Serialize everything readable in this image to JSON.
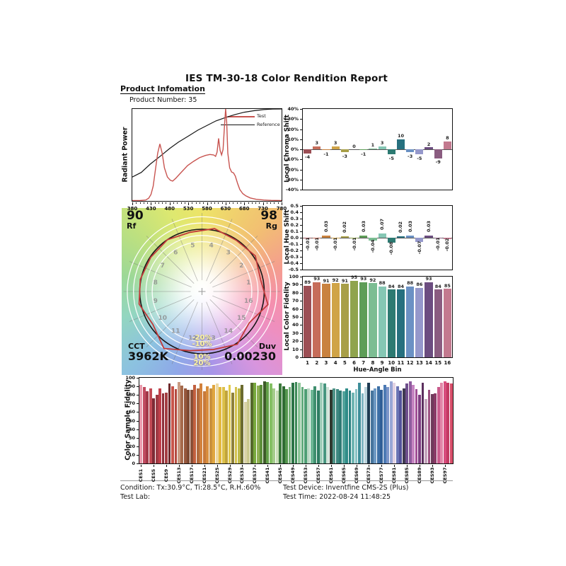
{
  "page": {
    "title": "IES TM-30-18 Color Rendition Report"
  },
  "product": {
    "section_title": "Product Infomation",
    "number_label": "Product Number: 35"
  },
  "bin_colors": [
    "#9C4F55",
    "#C66D5A",
    "#C9823F",
    "#D0A447",
    "#A89F48",
    "#8FA44D",
    "#5E9D58",
    "#7CBD93",
    "#85C7B4",
    "#2D7A72",
    "#26707F",
    "#6B91C4",
    "#9598CB",
    "#6C4D80",
    "#8A5C80",
    "#C3798F"
  ],
  "chart_data": [
    {
      "id": "spd",
      "type": "line",
      "ylabel": "Radiant Power",
      "xlim": [
        380,
        780
      ],
      "x_ticks": [
        380,
        430,
        480,
        530,
        580,
        630,
        680,
        730,
        780
      ],
      "legend_position": "top-right",
      "grid": false,
      "series": [
        {
          "name": "Reference",
          "color": "#161616",
          "points": [
            [
              0,
              0.26
            ],
            [
              0.06,
              0.31
            ],
            [
              0.12,
              0.4
            ],
            [
              0.19,
              0.49
            ],
            [
              0.25,
              0.57
            ],
            [
              0.31,
              0.64
            ],
            [
              0.38,
              0.71
            ],
            [
              0.44,
              0.77
            ],
            [
              0.5,
              0.82
            ],
            [
              0.56,
              0.87
            ],
            [
              0.63,
              0.91
            ],
            [
              0.69,
              0.94
            ],
            [
              0.75,
              0.965
            ],
            [
              0.81,
              0.98
            ],
            [
              0.88,
              0.993
            ],
            [
              0.94,
              0.999
            ],
            [
              1,
              1.0
            ]
          ]
        },
        {
          "name": "Test",
          "color": "#C85450",
          "points": [
            [
              0,
              0.004
            ],
            [
              0.05,
              0.004
            ],
            [
              0.09,
              0.01
            ],
            [
              0.11,
              0.03
            ],
            [
              0.125,
              0.07
            ],
            [
              0.14,
              0.16
            ],
            [
              0.155,
              0.34
            ],
            [
              0.17,
              0.52
            ],
            [
              0.185,
              0.62
            ],
            [
              0.2,
              0.52
            ],
            [
              0.215,
              0.36
            ],
            [
              0.235,
              0.26
            ],
            [
              0.255,
              0.225
            ],
            [
              0.27,
              0.215
            ],
            [
              0.29,
              0.245
            ],
            [
              0.33,
              0.315
            ],
            [
              0.37,
              0.385
            ],
            [
              0.41,
              0.43
            ],
            [
              0.45,
              0.47
            ],
            [
              0.49,
              0.495
            ],
            [
              0.52,
              0.505
            ],
            [
              0.545,
              0.5
            ],
            [
              0.558,
              0.485
            ],
            [
              0.568,
              0.53
            ],
            [
              0.578,
              0.68
            ],
            [
              0.588,
              0.55
            ],
            [
              0.598,
              0.5
            ],
            [
              0.608,
              0.56
            ],
            [
              0.618,
              0.83
            ],
            [
              0.625,
              1.0
            ],
            [
              0.632,
              0.86
            ],
            [
              0.64,
              0.52
            ],
            [
              0.652,
              0.36
            ],
            [
              0.665,
              0.315
            ],
            [
              0.678,
              0.305
            ],
            [
              0.69,
              0.27
            ],
            [
              0.705,
              0.19
            ],
            [
              0.72,
              0.125
            ],
            [
              0.74,
              0.08
            ],
            [
              0.76,
              0.055
            ],
            [
              0.79,
              0.032
            ],
            [
              0.83,
              0.018
            ],
            [
              0.88,
              0.01
            ],
            [
              0.93,
              0.006
            ],
            [
              1,
              0.004
            ]
          ]
        }
      ]
    },
    {
      "id": "chroma",
      "type": "bar",
      "ylabel": "Local Chroma Shift",
      "ylim": [
        -40,
        40
      ],
      "ytick_step": 10,
      "ytick_suffix": "%",
      "values": [
        -4,
        3,
        -1,
        3,
        -3,
        0,
        -1,
        1,
        3,
        -5,
        10,
        -3,
        -5,
        2,
        -9,
        8
      ]
    },
    {
      "id": "hue",
      "type": "bar",
      "ylabel": "Local Hue Shift",
      "ylim": [
        -0.5,
        0.5
      ],
      "ytick_step": 0.1,
      "values": [
        -0.01,
        -0.01,
        0.03,
        -0.01,
        0.02,
        -0.01,
        0.03,
        -0.04,
        0.07,
        -0.08,
        0.02,
        0.03,
        -0.07,
        0.03,
        -0.01,
        -0.02
      ]
    },
    {
      "id": "fidelity",
      "type": "bar",
      "ylabel": "Local Color Fidelity",
      "xlabel": "Hue-Angle Bin",
      "ylim": [
        0,
        100
      ],
      "ytick_step": 10,
      "categories": [
        "1",
        "2",
        "3",
        "4",
        "5",
        "6",
        "7",
        "8",
        "9",
        "10",
        "11",
        "12",
        "13",
        "14",
        "15",
        "16"
      ],
      "values": [
        89,
        93,
        91,
        92,
        91,
        95,
        93,
        92,
        88,
        84,
        84,
        88,
        86,
        93,
        84,
        85
      ]
    },
    {
      "id": "ces",
      "type": "bar",
      "ylabel": "Color Sample Fidelity",
      "ylim": [
        0,
        100
      ],
      "ytick_step": 10,
      "x_tick_labels": [
        "CES1",
        "CES5",
        "CES9",
        "CES13",
        "CES17",
        "CES21",
        "CES25",
        "CES29",
        "CES33",
        "CES37",
        "CES41",
        "CES45",
        "CES49",
        "CES53",
        "CES57",
        "CES61",
        "CES65",
        "CES69",
        "CES73",
        "CES77",
        "CES81",
        "CES85",
        "CES89",
        "CES93",
        "CES97"
      ],
      "values": [
        92,
        89,
        84,
        88,
        76,
        80,
        88,
        82,
        83,
        93,
        90,
        87,
        95,
        91,
        88,
        86,
        86,
        92,
        88,
        93,
        84,
        90,
        88,
        92,
        93,
        89,
        89,
        85,
        92,
        83,
        89,
        88,
        92,
        72,
        75,
        94,
        94,
        91,
        92,
        96,
        95,
        93,
        88,
        85,
        93,
        90,
        87,
        89,
        94,
        95,
        94,
        89,
        87,
        88,
        86,
        90,
        85,
        94,
        93,
        89,
        86,
        88,
        87,
        85,
        84,
        88,
        85,
        83,
        87,
        94,
        82,
        89,
        94,
        85,
        88,
        90,
        86,
        92,
        89,
        96,
        94,
        90,
        85,
        88,
        93,
        96,
        92,
        87,
        80,
        94,
        75,
        86,
        81,
        82,
        89,
        94,
        96,
        94,
        93
      ],
      "colors": [
        "#E89BAC",
        "#C04B60",
        "#A13848",
        "#C24B55",
        "#7E2A35",
        "#9E3A44",
        "#C1404A",
        "#8C2F38",
        "#A53E42",
        "#6E2A2C",
        "#C8554A",
        "#B34A3F",
        "#C99B82",
        "#A66A4C",
        "#96573C",
        "#7D4A33",
        "#8A5038",
        "#C2603F",
        "#B06A3E",
        "#D2813C",
        "#C8793A",
        "#D88E3E",
        "#C9913F",
        "#E0A63F",
        "#EDD9A3",
        "#E3B93F",
        "#DCC04A",
        "#C0A43C",
        "#E2C94A",
        "#8F813A",
        "#D4C24E",
        "#BCB84A",
        "#6B6B2F",
        "#D9D3A8",
        "#CBC98F",
        "#55682C",
        "#77A83C",
        "#8FB052",
        "#5D8F3A",
        "#3E5B2A",
        "#63A04A",
        "#84C064",
        "#A4CC8B",
        "#C9DEB8",
        "#3C7A3C",
        "#2F6B33",
        "#55964F",
        "#75B077",
        "#2D7547",
        "#3D8A57",
        "#8FC79A",
        "#62AB7C",
        "#4E9E74",
        "#B9D8C4",
        "#6FB896",
        "#3F8F6E",
        "#2E7D62",
        "#9FCDB9",
        "#47967F",
        "#CFE3D8",
        "#31392F",
        "#4F9387",
        "#3E887F",
        "#2F7A74",
        "#52A39B",
        "#2F8C88",
        "#287F80",
        "#6FB5B2",
        "#88C2C4",
        "#3E8E99",
        "#7FB4C2",
        "#B9D3DC",
        "#1E3A52",
        "#46749C",
        "#6E9AC4",
        "#3C6FA5",
        "#2F5E96",
        "#4C7AB4",
        "#7C95C8",
        "#98A6D6",
        "#E3D3E3",
        "#6B74B4",
        "#53539B",
        "#3F3A52",
        "#6E4F8C",
        "#8E5C9E",
        "#C684C2",
        "#A14E96",
        "#7E3E82",
        "#5C2F5E",
        "#C4A4BC",
        "#9C5080",
        "#6E3A5A",
        "#8A3A66",
        "#C95B8C",
        "#E187A8",
        "#D84E7E",
        "#C23A62",
        "#D94E6A"
      ]
    }
  ],
  "cvg": {
    "rf_value": "90",
    "rf_label": "Rf",
    "rg_value": "98",
    "rg_label": "Rg",
    "cct_label": "CCT",
    "cct_value": "3962K",
    "duv_label": "Duv",
    "duv_value": "0.00230",
    "ring_labels": [
      "-20%",
      "-10%",
      "10%",
      "20%"
    ],
    "bin_numbers": [
      "1",
      "2",
      "3",
      "4",
      "5",
      "6",
      "7",
      "8",
      "9",
      "10",
      "11",
      "12",
      "13",
      "14",
      "15",
      "16"
    ],
    "reference_circle_color": "#151515",
    "test_polygon_color": "#C23A3A"
  },
  "footer": {
    "condition": "Condition: Tx:30.9°C, Ti:28.5°C, R.H.:60%",
    "test_lab": "Test Lab:",
    "test_device": "Test Device: Inventfine CMS-2S (Plus)",
    "test_time": "Test Time: 2022-08-24 11:48:25"
  }
}
